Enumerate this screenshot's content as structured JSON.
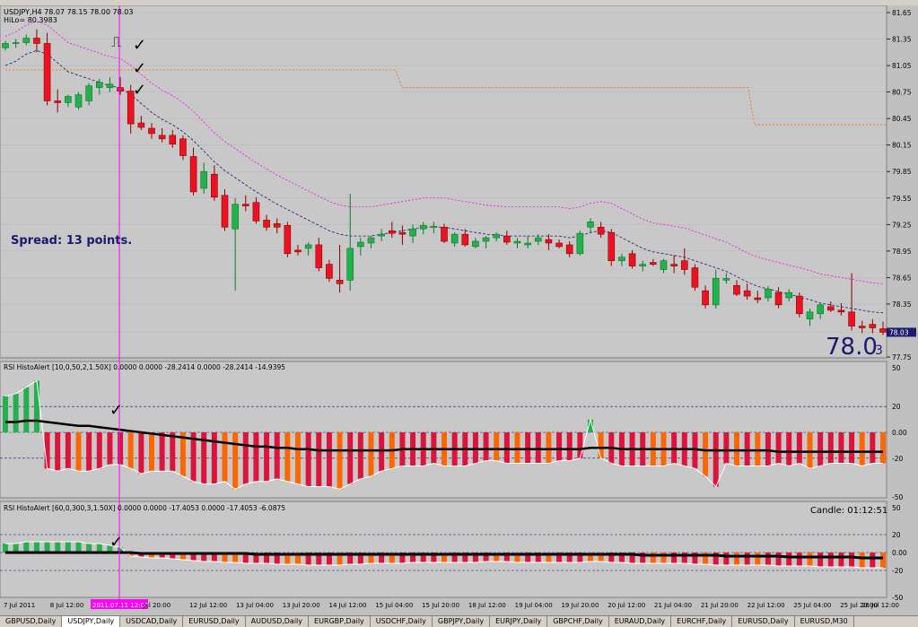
{
  "colors": {
    "bg": "#c0c0c0",
    "bull": "#22b14c",
    "bear": "#ee1122",
    "orange": "#ff6600",
    "crimson": "#dc143c",
    "magenta": "#ff00ff",
    "navy": "#1a1a6e"
  },
  "main": {
    "symbol_line": "USDJPY,H4  78.07 78.15 78.00 78.03",
    "hilo_line": "HiLo= 80.3983",
    "spread_label": "Spread: 13 points.",
    "big_price_main": "78.0",
    "big_price_sub": "3",
    "current_price_tag": "78.03",
    "price_scale": [
      "81.65",
      "81.35",
      "81.05",
      "80.75",
      "80.45",
      "80.15",
      "79.85",
      "79.55",
      "79.25",
      "78.95",
      "78.65",
      "78.35",
      "78.03",
      "77.75"
    ],
    "square_wave_glyph": "⎍",
    "check_glyph": "✓"
  },
  "panel1": {
    "title": "RSI HistoAlert [10,0,50,2,1.50X] 0.0000 0.0000 -28.2414 0.0000 -28.2414 -14.9395",
    "scale": [
      "50",
      "20",
      "0.00",
      "-20",
      "-50"
    ]
  },
  "panel2": {
    "title": "RSI HistoAlert [60,0,300,3,1.50X] 0.0000 0.0000 -17.4053 0.0000 -17.4053 -6.0875",
    "candle_timer": "Candle:  01:12:51",
    "scale": [
      "50",
      "20",
      "0.00",
      "-20",
      "-50"
    ]
  },
  "time_axis": {
    "labels": [
      "7 Jul 2011",
      "8 Jul 12:00",
      "2011.07.11 12:00",
      "Jul 20:00",
      "12 Jul 12:00",
      "13 Jul 04:00",
      "13 Jul 20:00",
      "14 Jul 12:00",
      "15 Jul 04:00",
      "15 Jul 20:00",
      "18 Jul 12:00",
      "19 Jul 04:00",
      "19 Jul 20:00",
      "20 Jul 12:00",
      "21 Jul 04:00",
      "21 Jul 20:00",
      "22 Jul 12:00",
      "25 Jul 04:00",
      "25 Jul 20:00",
      "26 Jul 12:00"
    ],
    "highlight_label": "2011.07.11 12:00"
  },
  "tabs": [
    "GBPUSD,Daily",
    "USDJPY,Daily",
    "USDCAD,Daily",
    "EURUSD,Daily",
    "AUDUSD,Daily",
    "EURGBP,Daily",
    "USDCHF,Daily",
    "GBPJPY,Daily",
    "EURJPY,Daily",
    "GBPCHF,Daily",
    "EURAUD,Daily",
    "EURCHF,Daily",
    "EURUSD,Daily",
    "EURUSD,M30"
  ],
  "chart_data": {
    "type": "candlestick",
    "symbol": "USDJPY",
    "timeframe": "H4",
    "ylim": [
      77.75,
      81.65
    ],
    "candles": [
      [
        81.25,
        81.33,
        81.22,
        81.3
      ],
      [
        81.3,
        81.35,
        81.25,
        81.31
      ],
      [
        81.31,
        81.4,
        81.28,
        81.36
      ],
      [
        81.36,
        81.46,
        81.2,
        81.3
      ],
      [
        81.3,
        81.42,
        80.6,
        80.65
      ],
      [
        80.65,
        80.78,
        80.52,
        80.63
      ],
      [
        80.63,
        80.72,
        80.58,
        80.7
      ],
      [
        80.58,
        80.75,
        80.55,
        80.72
      ],
      [
        80.65,
        80.85,
        80.6,
        80.82
      ],
      [
        80.8,
        80.9,
        80.72,
        80.86
      ],
      [
        80.8,
        80.92,
        80.75,
        80.84
      ],
      [
        80.8,
        80.92,
        80.72,
        80.76
      ],
      [
        80.76,
        80.83,
        80.28,
        80.39
      ],
      [
        80.4,
        80.48,
        80.32,
        80.35
      ],
      [
        80.34,
        80.4,
        80.22,
        80.28
      ],
      [
        80.26,
        80.34,
        80.18,
        80.22
      ],
      [
        80.26,
        80.32,
        80.12,
        80.16
      ],
      [
        80.22,
        80.26,
        79.98,
        80.03
      ],
      [
        80.02,
        80.12,
        79.58,
        79.62
      ],
      [
        79.66,
        79.95,
        79.6,
        79.85
      ],
      [
        79.82,
        79.92,
        79.52,
        79.56
      ],
      [
        79.58,
        79.65,
        79.18,
        79.22
      ],
      [
        79.2,
        79.55,
        78.5,
        79.48
      ],
      [
        79.48,
        79.58,
        79.4,
        79.46
      ],
      [
        79.5,
        79.56,
        79.26,
        79.29
      ],
      [
        79.3,
        79.36,
        79.18,
        79.22
      ],
      [
        79.26,
        79.32,
        79.15,
        79.22
      ],
      [
        79.24,
        79.28,
        78.88,
        78.92
      ],
      [
        78.96,
        79.02,
        78.9,
        78.94
      ],
      [
        78.98,
        79.05,
        78.9,
        79.02
      ],
      [
        79.02,
        79.1,
        78.72,
        78.76
      ],
      [
        78.8,
        78.85,
        78.6,
        78.64
      ],
      [
        78.62,
        79.02,
        78.48,
        78.58
      ],
      [
        78.62,
        79.6,
        78.5,
        78.98
      ],
      [
        79.0,
        79.1,
        78.9,
        79.05
      ],
      [
        79.04,
        79.12,
        78.98,
        79.1
      ],
      [
        79.12,
        79.2,
        79.06,
        79.14
      ],
      [
        79.18,
        79.28,
        79.1,
        79.15
      ],
      [
        79.16,
        79.24,
        79.02,
        79.14
      ],
      [
        79.12,
        79.25,
        79.04,
        79.2
      ],
      [
        79.2,
        79.28,
        79.14,
        79.24
      ],
      [
        79.22,
        79.28,
        79.15,
        79.23
      ],
      [
        79.22,
        79.26,
        79.04,
        79.06
      ],
      [
        79.04,
        79.16,
        79.0,
        79.14
      ],
      [
        79.14,
        79.2,
        79.0,
        79.02
      ],
      [
        79.0,
        79.1,
        78.98,
        79.06
      ],
      [
        79.06,
        79.12,
        78.98,
        79.1
      ],
      [
        79.1,
        79.16,
        79.06,
        79.14
      ],
      [
        79.12,
        79.18,
        79.02,
        79.05
      ],
      [
        79.04,
        79.1,
        78.98,
        79.06
      ],
      [
        79.02,
        79.12,
        78.98,
        79.04
      ],
      [
        79.06,
        79.14,
        79.02,
        79.1
      ],
      [
        79.08,
        79.14,
        78.96,
        79.04
      ],
      [
        79.04,
        79.08,
        78.98,
        79.0
      ],
      [
        79.02,
        79.06,
        78.88,
        78.92
      ],
      [
        78.92,
        79.18,
        78.9,
        79.15
      ],
      [
        79.22,
        79.32,
        79.15,
        79.28
      ],
      [
        79.22,
        79.28,
        79.1,
        79.14
      ],
      [
        79.16,
        79.2,
        78.78,
        78.84
      ],
      [
        78.84,
        78.92,
        78.78,
        78.88
      ],
      [
        78.92,
        78.96,
        78.75,
        78.78
      ],
      [
        78.78,
        78.84,
        78.72,
        78.8
      ],
      [
        78.82,
        78.86,
        78.78,
        78.8
      ],
      [
        78.74,
        78.86,
        78.7,
        78.84
      ],
      [
        78.8,
        78.9,
        78.7,
        78.78
      ],
      [
        78.84,
        78.98,
        78.68,
        78.74
      ],
      [
        78.76,
        78.8,
        78.5,
        78.54
      ],
      [
        78.5,
        78.56,
        78.3,
        78.34
      ],
      [
        78.34,
        78.74,
        78.3,
        78.64
      ],
      [
        78.62,
        78.7,
        78.58,
        78.64
      ],
      [
        78.56,
        78.62,
        78.44,
        78.46
      ],
      [
        78.5,
        78.58,
        78.4,
        78.44
      ],
      [
        78.42,
        78.5,
        78.36,
        78.4
      ],
      [
        78.42,
        78.55,
        78.38,
        78.52
      ],
      [
        78.48,
        78.54,
        78.3,
        78.34
      ],
      [
        78.42,
        78.52,
        78.38,
        78.48
      ],
      [
        78.44,
        78.48,
        78.2,
        78.24
      ],
      [
        78.18,
        78.3,
        78.1,
        78.26
      ],
      [
        78.24,
        78.36,
        78.18,
        78.34
      ],
      [
        78.32,
        78.38,
        78.26,
        78.28
      ],
      [
        78.28,
        78.36,
        78.22,
        78.26
      ],
      [
        78.26,
        78.7,
        78.05,
        78.1
      ],
      [
        78.1,
        78.16,
        78.02,
        78.08
      ],
      [
        78.12,
        78.18,
        78.02,
        78.08
      ],
      [
        78.07,
        78.15,
        78.0,
        78.03
      ]
    ],
    "hilo_line": [
      81.05,
      81.1,
      81.18,
      81.22,
      81.18,
      81.08,
      80.98,
      80.94,
      80.9,
      80.86,
      80.82,
      80.8,
      80.72,
      80.62,
      80.52,
      80.44,
      80.38,
      80.3,
      80.2,
      80.08,
      79.96,
      79.86,
      79.78,
      79.7,
      79.62,
      79.55,
      79.48,
      79.42,
      79.36,
      79.3,
      79.24,
      79.18,
      79.14,
      79.12,
      79.12,
      79.12,
      79.14,
      79.16,
      79.18,
      79.2,
      79.22,
      79.22,
      79.22,
      79.2,
      79.18,
      79.16,
      79.14,
      79.13,
      79.12,
      79.12,
      79.12,
      79.12,
      79.12,
      79.12,
      79.1,
      79.12,
      79.16,
      79.18,
      79.16,
      79.1,
      79.04,
      78.98,
      78.94,
      78.92,
      78.9,
      78.88,
      78.84,
      78.8,
      78.76,
      78.72,
      78.66,
      78.6,
      78.55,
      78.52,
      78.49,
      78.46,
      78.43,
      78.4,
      78.36,
      78.34,
      78.32,
      78.3,
      78.28,
      78.26,
      78.25
    ],
    "orange_level": [
      [
        0,
        81.0
      ],
      [
        62,
        81.0
      ],
      [
        63,
        80.8
      ],
      [
        118,
        80.8
      ],
      [
        119,
        80.38
      ],
      [
        140,
        80.38
      ]
    ],
    "rsi_fast": [
      28,
      30,
      35,
      40,
      -28,
      -30,
      -28,
      -30,
      -30,
      -28,
      -25,
      -25,
      -28,
      -32,
      -30,
      -30,
      -30,
      -34,
      -38,
      -40,
      -40,
      -38,
      -44,
      -40,
      -38,
      -38,
      -36,
      -38,
      -40,
      -42,
      -42,
      -42,
      -44,
      -40,
      -36,
      -34,
      -30,
      -28,
      -26,
      -26,
      -26,
      -24,
      -26,
      -26,
      -26,
      -24,
      -22,
      -22,
      -24,
      -24,
      -24,
      -24,
      -24,
      -22,
      -22,
      -20,
      10,
      -20,
      -24,
      -26,
      -26,
      -26,
      -26,
      -26,
      -24,
      -26,
      -28,
      -34,
      -42,
      -24,
      -26,
      -26,
      -26,
      -26,
      -24,
      -26,
      -24,
      -28,
      -26,
      -24,
      -24,
      -24,
      -26,
      -24,
      -24
    ],
    "rsi_fast_signal": [
      8,
      8,
      9,
      9,
      8,
      7,
      6,
      5,
      5,
      4,
      3,
      2,
      1,
      0,
      -1,
      -2,
      -3,
      -4,
      -5,
      -6,
      -7,
      -8,
      -9,
      -10,
      -11,
      -11,
      -12,
      -12,
      -13,
      -13,
      -14,
      -14,
      -14,
      -14,
      -14,
      -14,
      -14,
      -14,
      -13,
      -13,
      -13,
      -13,
      -13,
      -13,
      -13,
      -13,
      -13,
      -13,
      -13,
      -13,
      -13,
      -13,
      -13,
      -13,
      -13,
      -13,
      -12,
      -12,
      -12,
      -13,
      -13,
      -13,
      -13,
      -13,
      -13,
      -13,
      -13,
      -14,
      -14,
      -14,
      -14,
      -14,
      -14,
      -14,
      -15,
      -15,
      -15,
      -15,
      -15,
      -15,
      -15,
      -15,
      -15,
      -15,
      -15
    ],
    "rsi_slow": [
      10,
      10,
      12,
      12,
      12,
      12,
      12,
      12,
      10,
      10,
      8,
      6,
      -4,
      -5,
      -6,
      -6,
      -7,
      -8,
      -9,
      -10,
      -10,
      -11,
      -11,
      -12,
      -12,
      -12,
      -13,
      -13,
      -13,
      -14,
      -14,
      -14,
      -14,
      -13,
      -13,
      -12,
      -12,
      -12,
      -12,
      -11,
      -11,
      -11,
      -11,
      -11,
      -11,
      -11,
      -10,
      -10,
      -10,
      -11,
      -11,
      -11,
      -11,
      -11,
      -11,
      -11,
      -10,
      -10,
      -11,
      -11,
      -12,
      -12,
      -12,
      -12,
      -12,
      -12,
      -13,
      -13,
      -14,
      -14,
      -14,
      -14,
      -14,
      -14,
      -15,
      -15,
      -15,
      -15,
      -16,
      -16,
      -16,
      -16,
      -17,
      -17,
      -17
    ],
    "rsi_slow_signal": [
      0,
      0,
      0,
      0,
      0,
      0,
      0,
      0,
      0,
      0,
      0,
      0,
      0,
      -1,
      -1,
      -1,
      -1,
      -1,
      -1,
      -1,
      -1,
      -1,
      -1,
      -1,
      -2,
      -2,
      -2,
      -2,
      -2,
      -2,
      -2,
      -2,
      -2,
      -2,
      -2,
      -2,
      -2,
      -2,
      -2,
      -2,
      -2,
      -2,
      -2,
      -2,
      -2,
      -2,
      -2,
      -2,
      -2,
      -2,
      -2,
      -2,
      -2,
      -2,
      -2,
      -2,
      -2,
      -2,
      -2,
      -2,
      -2,
      -3,
      -3,
      -3,
      -3,
      -3,
      -3,
      -3,
      -3,
      -4,
      -4,
      -4,
      -4,
      -4,
      -4,
      -5,
      -5,
      -5,
      -5,
      -5,
      -5,
      -5,
      -6,
      -6,
      -6
    ]
  }
}
